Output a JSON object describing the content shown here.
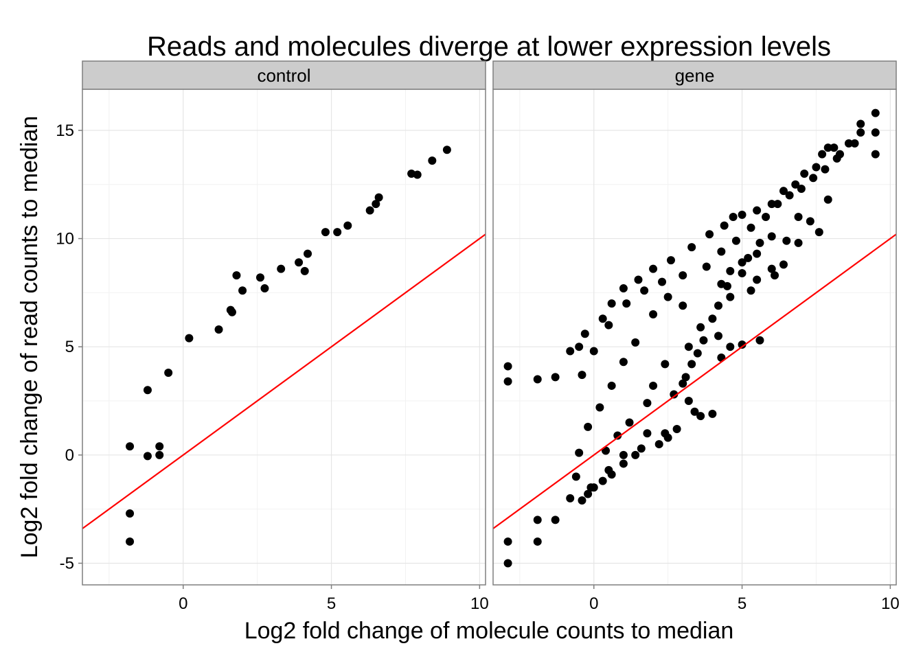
{
  "chart_data": {
    "type": "scatter",
    "title": "Reads and molecules diverge at lower expression levels",
    "xlabel": "Log2 fold change of molecule counts to median",
    "ylabel": "Log2 fold change of read counts to median",
    "xlim": [
      -3.4,
      10.2
    ],
    "ylim": [
      -6,
      16.9
    ],
    "x_ticks": [
      0,
      5,
      10
    ],
    "x_tick_labels": [
      "0",
      "5",
      "10"
    ],
    "y_ticks": [
      -5,
      0,
      5,
      10,
      15
    ],
    "y_tick_labels": [
      "-5",
      "0",
      "5",
      "10",
      "15"
    ],
    "grid": true,
    "reference_line": {
      "slope": 1,
      "intercept": 0,
      "color": "#ff0000"
    },
    "point_color": "#000000",
    "panels": [
      {
        "label": "control",
        "points": [
          [
            -1.8,
            0.4
          ],
          [
            -1.8,
            -2.7
          ],
          [
            -1.8,
            -4.0
          ],
          [
            -1.2,
            3.0
          ],
          [
            -1.2,
            -0.05
          ],
          [
            -0.8,
            0.4
          ],
          [
            -0.8,
            0.0
          ],
          [
            -0.5,
            3.8
          ],
          [
            0.2,
            5.4
          ],
          [
            1.2,
            5.8
          ],
          [
            1.6,
            6.7
          ],
          [
            1.65,
            6.6
          ],
          [
            1.8,
            8.3
          ],
          [
            2.0,
            7.6
          ],
          [
            2.6,
            8.2
          ],
          [
            2.75,
            7.7
          ],
          [
            3.3,
            8.6
          ],
          [
            3.9,
            8.9
          ],
          [
            4.1,
            8.5
          ],
          [
            4.2,
            9.3
          ],
          [
            4.8,
            10.3
          ],
          [
            5.2,
            10.3
          ],
          [
            5.55,
            10.6
          ],
          [
            6.3,
            11.3
          ],
          [
            6.5,
            11.6
          ],
          [
            6.6,
            11.9
          ],
          [
            7.7,
            13.0
          ],
          [
            7.9,
            12.95
          ],
          [
            8.4,
            13.6
          ],
          [
            8.9,
            14.1
          ]
        ]
      },
      {
        "label": "gene",
        "points": [
          [
            -2.9,
            4.1
          ],
          [
            -2.9,
            3.4
          ],
          [
            -2.9,
            -4.0
          ],
          [
            -2.9,
            -5.0
          ],
          [
            -1.9,
            3.5
          ],
          [
            -1.9,
            -3.0
          ],
          [
            -1.9,
            -4.0
          ],
          [
            -1.3,
            3.6
          ],
          [
            -1.3,
            -3.0
          ],
          [
            -0.8,
            4.8
          ],
          [
            -0.8,
            -2.0
          ],
          [
            -0.5,
            5.0
          ],
          [
            -0.3,
            5.6
          ],
          [
            0.3,
            6.3
          ],
          [
            0.6,
            7.0
          ],
          [
            1.0,
            7.7
          ],
          [
            1.5,
            8.1
          ],
          [
            2.0,
            8.6
          ],
          [
            2.6,
            9.0
          ],
          [
            3.3,
            9.6
          ],
          [
            3.9,
            10.2
          ],
          [
            4.4,
            10.6
          ],
          [
            4.7,
            11.0
          ],
          [
            5.0,
            11.1
          ],
          [
            5.5,
            11.3
          ],
          [
            6.0,
            11.6
          ],
          [
            6.4,
            12.2
          ],
          [
            6.8,
            12.5
          ],
          [
            7.1,
            13.0
          ],
          [
            7.5,
            13.3
          ],
          [
            7.7,
            13.9
          ],
          [
            7.9,
            14.2
          ],
          [
            8.1,
            14.2
          ],
          [
            8.3,
            13.9
          ],
          [
            8.6,
            14.4
          ],
          [
            8.8,
            14.4
          ],
          [
            9.0,
            15.3
          ],
          [
            9.0,
            14.9
          ],
          [
            9.5,
            15.8
          ],
          [
            9.5,
            14.9
          ],
          [
            9.5,
            13.9
          ],
          [
            7.9,
            11.8
          ],
          [
            6.9,
            11.0
          ],
          [
            7.3,
            10.8
          ],
          [
            7.6,
            10.3
          ],
          [
            6.5,
            9.9
          ],
          [
            6.9,
            9.8
          ],
          [
            6.0,
            10.1
          ],
          [
            5.6,
            9.8
          ],
          [
            5.5,
            9.3
          ],
          [
            5.2,
            9.1
          ],
          [
            6.1,
            8.3
          ],
          [
            6.4,
            8.8
          ],
          [
            6.0,
            8.6
          ],
          [
            5.0,
            8.9
          ],
          [
            4.6,
            8.5
          ],
          [
            5.5,
            8.1
          ],
          [
            5.3,
            7.6
          ],
          [
            4.3,
            7.9
          ],
          [
            4.6,
            7.3
          ],
          [
            4.2,
            6.9
          ],
          [
            4.0,
            6.3
          ],
          [
            3.6,
            5.9
          ],
          [
            5.6,
            5.3
          ],
          [
            5.0,
            5.1
          ],
          [
            4.6,
            5.0
          ],
          [
            4.3,
            4.5
          ],
          [
            3.7,
            5.3
          ],
          [
            4.2,
            5.5
          ],
          [
            3.5,
            4.7
          ],
          [
            3.3,
            4.2
          ],
          [
            3.1,
            3.6
          ],
          [
            3.4,
            2.0
          ],
          [
            3.2,
            2.5
          ],
          [
            3.6,
            1.8
          ],
          [
            4.0,
            1.9
          ],
          [
            2.8,
            1.2
          ],
          [
            2.4,
            1.0
          ],
          [
            2.5,
            0.8
          ],
          [
            2.2,
            0.5
          ],
          [
            1.6,
            0.3
          ],
          [
            1.4,
            0.0
          ],
          [
            1.0,
            -0.4
          ],
          [
            0.6,
            -0.9
          ],
          [
            0.3,
            -1.2
          ],
          [
            0.0,
            -1.5
          ],
          [
            -0.2,
            -1.8
          ],
          [
            -0.4,
            -2.1
          ],
          [
            3.0,
            6.9
          ],
          [
            2.5,
            7.3
          ],
          [
            2.0,
            6.5
          ],
          [
            1.4,
            5.2
          ],
          [
            1.0,
            4.3
          ],
          [
            0.6,
            3.2
          ],
          [
            0.2,
            2.2
          ],
          [
            -0.2,
            1.3
          ],
          [
            -0.5,
            0.1
          ],
          [
            -0.6,
            -1.0
          ],
          [
            2.4,
            4.2
          ],
          [
            2.0,
            3.2
          ],
          [
            1.8,
            2.4
          ],
          [
            1.2,
            1.5
          ],
          [
            0.8,
            0.9
          ],
          [
            0.4,
            0.2
          ],
          [
            3.0,
            8.3
          ],
          [
            2.3,
            8.0
          ],
          [
            1.7,
            7.6
          ],
          [
            1.1,
            7.0
          ],
          [
            0.5,
            6.0
          ],
          [
            0.0,
            4.8
          ],
          [
            -0.4,
            3.7
          ],
          [
            3.8,
            8.7
          ],
          [
            4.3,
            9.4
          ],
          [
            4.8,
            9.9
          ],
          [
            5.3,
            10.5
          ],
          [
            5.8,
            11.0
          ],
          [
            6.2,
            11.6
          ],
          [
            6.6,
            12.0
          ],
          [
            7.0,
            12.3
          ],
          [
            7.4,
            12.8
          ],
          [
            7.8,
            13.2
          ],
          [
            8.2,
            13.7
          ],
          [
            4.5,
            7.8
          ],
          [
            5.0,
            8.4
          ],
          [
            3.2,
            5.0
          ],
          [
            2.7,
            2.8
          ],
          [
            3.0,
            3.3
          ],
          [
            1.8,
            1.0
          ],
          [
            1.0,
            0.0
          ],
          [
            0.5,
            -0.7
          ],
          [
            -0.1,
            -1.5
          ]
        ]
      }
    ]
  }
}
